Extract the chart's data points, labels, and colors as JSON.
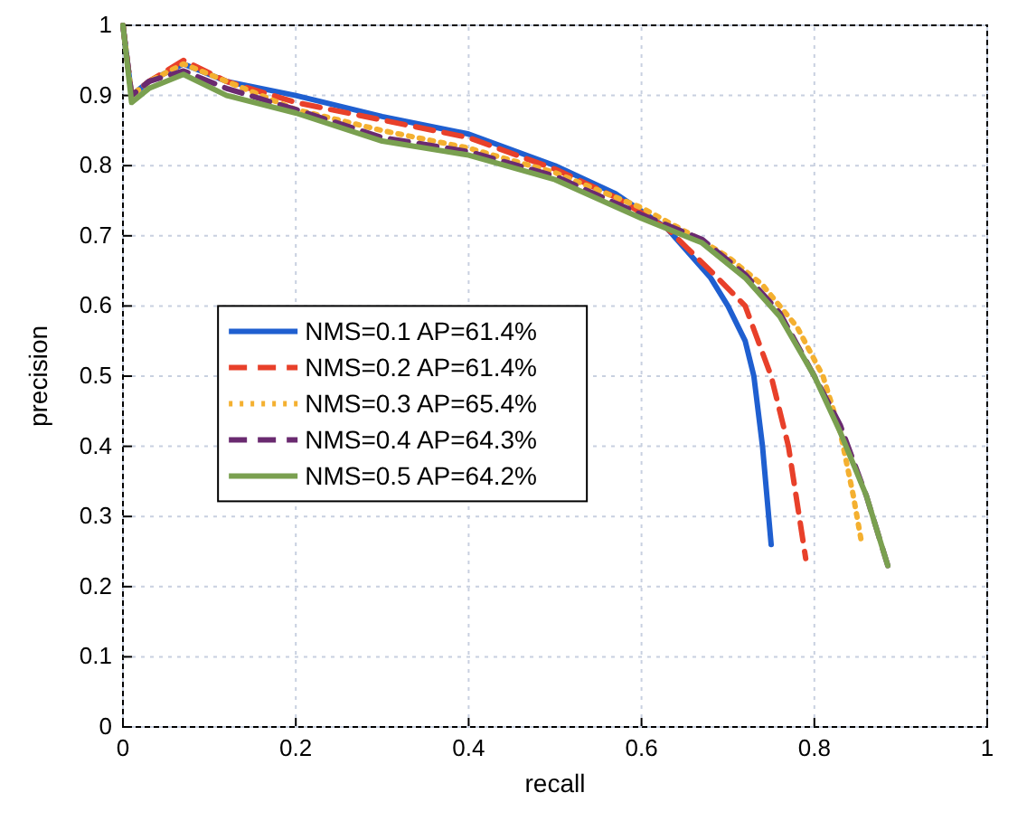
{
  "chart_data": {
    "type": "line",
    "xlabel": "recall",
    "ylabel": "precision",
    "xlim": [
      0,
      1
    ],
    "ylim": [
      0,
      1
    ],
    "xticks": [
      0,
      0.2,
      0.4,
      0.6,
      0.8,
      1
    ],
    "yticks": [
      0,
      0.1,
      0.2,
      0.3,
      0.4,
      0.5,
      0.6,
      0.7,
      0.8,
      0.9,
      1
    ],
    "grid": true,
    "legend": "left",
    "marker": "none",
    "series": [
      {
        "name": "NMS=0.1 AP=61.4%",
        "color": "#1f5fd0",
        "line_style": "solid",
        "x": [
          0,
          0.01,
          0.03,
          0.07,
          0.12,
          0.2,
          0.3,
          0.4,
          0.5,
          0.57,
          0.63,
          0.68,
          0.7,
          0.72,
          0.73,
          0.74,
          0.75
        ],
        "values": [
          1,
          0.9,
          0.92,
          0.945,
          0.92,
          0.9,
          0.87,
          0.845,
          0.8,
          0.76,
          0.71,
          0.64,
          0.6,
          0.55,
          0.5,
          0.4,
          0.26
        ]
      },
      {
        "name": "NMS=0.2 AP=61.4%",
        "color": "#e8402a",
        "line_style": "dashed",
        "x": [
          0,
          0.01,
          0.03,
          0.07,
          0.12,
          0.2,
          0.3,
          0.4,
          0.5,
          0.57,
          0.63,
          0.68,
          0.72,
          0.75,
          0.77,
          0.79
        ],
        "values": [
          1,
          0.9,
          0.92,
          0.95,
          0.92,
          0.89,
          0.865,
          0.84,
          0.795,
          0.755,
          0.71,
          0.65,
          0.6,
          0.5,
          0.4,
          0.24
        ]
      },
      {
        "name": "NMS=0.3 AP=65.4%",
        "color": "#f4b030",
        "line_style": "dotted",
        "x": [
          0,
          0.01,
          0.03,
          0.07,
          0.12,
          0.2,
          0.3,
          0.4,
          0.5,
          0.6,
          0.66,
          0.7,
          0.74,
          0.78,
          0.81,
          0.83,
          0.845,
          0.855
        ],
        "values": [
          1,
          0.9,
          0.92,
          0.945,
          0.92,
          0.88,
          0.85,
          0.825,
          0.79,
          0.74,
          0.7,
          0.67,
          0.63,
          0.57,
          0.5,
          0.42,
          0.33,
          0.26
        ]
      },
      {
        "name": "NMS=0.4 AP=64.3%",
        "color": "#6a2a70",
        "line_style": "dashed",
        "x": [
          0,
          0.01,
          0.03,
          0.07,
          0.12,
          0.2,
          0.3,
          0.4,
          0.5,
          0.6,
          0.67,
          0.72,
          0.76,
          0.8,
          0.83,
          0.86,
          0.885
        ],
        "values": [
          1,
          0.9,
          0.92,
          0.935,
          0.91,
          0.88,
          0.84,
          0.82,
          0.785,
          0.73,
          0.695,
          0.645,
          0.59,
          0.5,
          0.43,
          0.33,
          0.23
        ]
      },
      {
        "name": "NMS=0.5 AP=64.2%",
        "color": "#7aa050",
        "line_style": "solid",
        "x": [
          0,
          0.01,
          0.03,
          0.07,
          0.12,
          0.2,
          0.3,
          0.4,
          0.5,
          0.6,
          0.67,
          0.72,
          0.76,
          0.8,
          0.83,
          0.86,
          0.885
        ],
        "values": [
          1,
          0.89,
          0.91,
          0.93,
          0.9,
          0.875,
          0.835,
          0.815,
          0.78,
          0.725,
          0.69,
          0.64,
          0.585,
          0.5,
          0.42,
          0.33,
          0.23
        ]
      }
    ]
  }
}
